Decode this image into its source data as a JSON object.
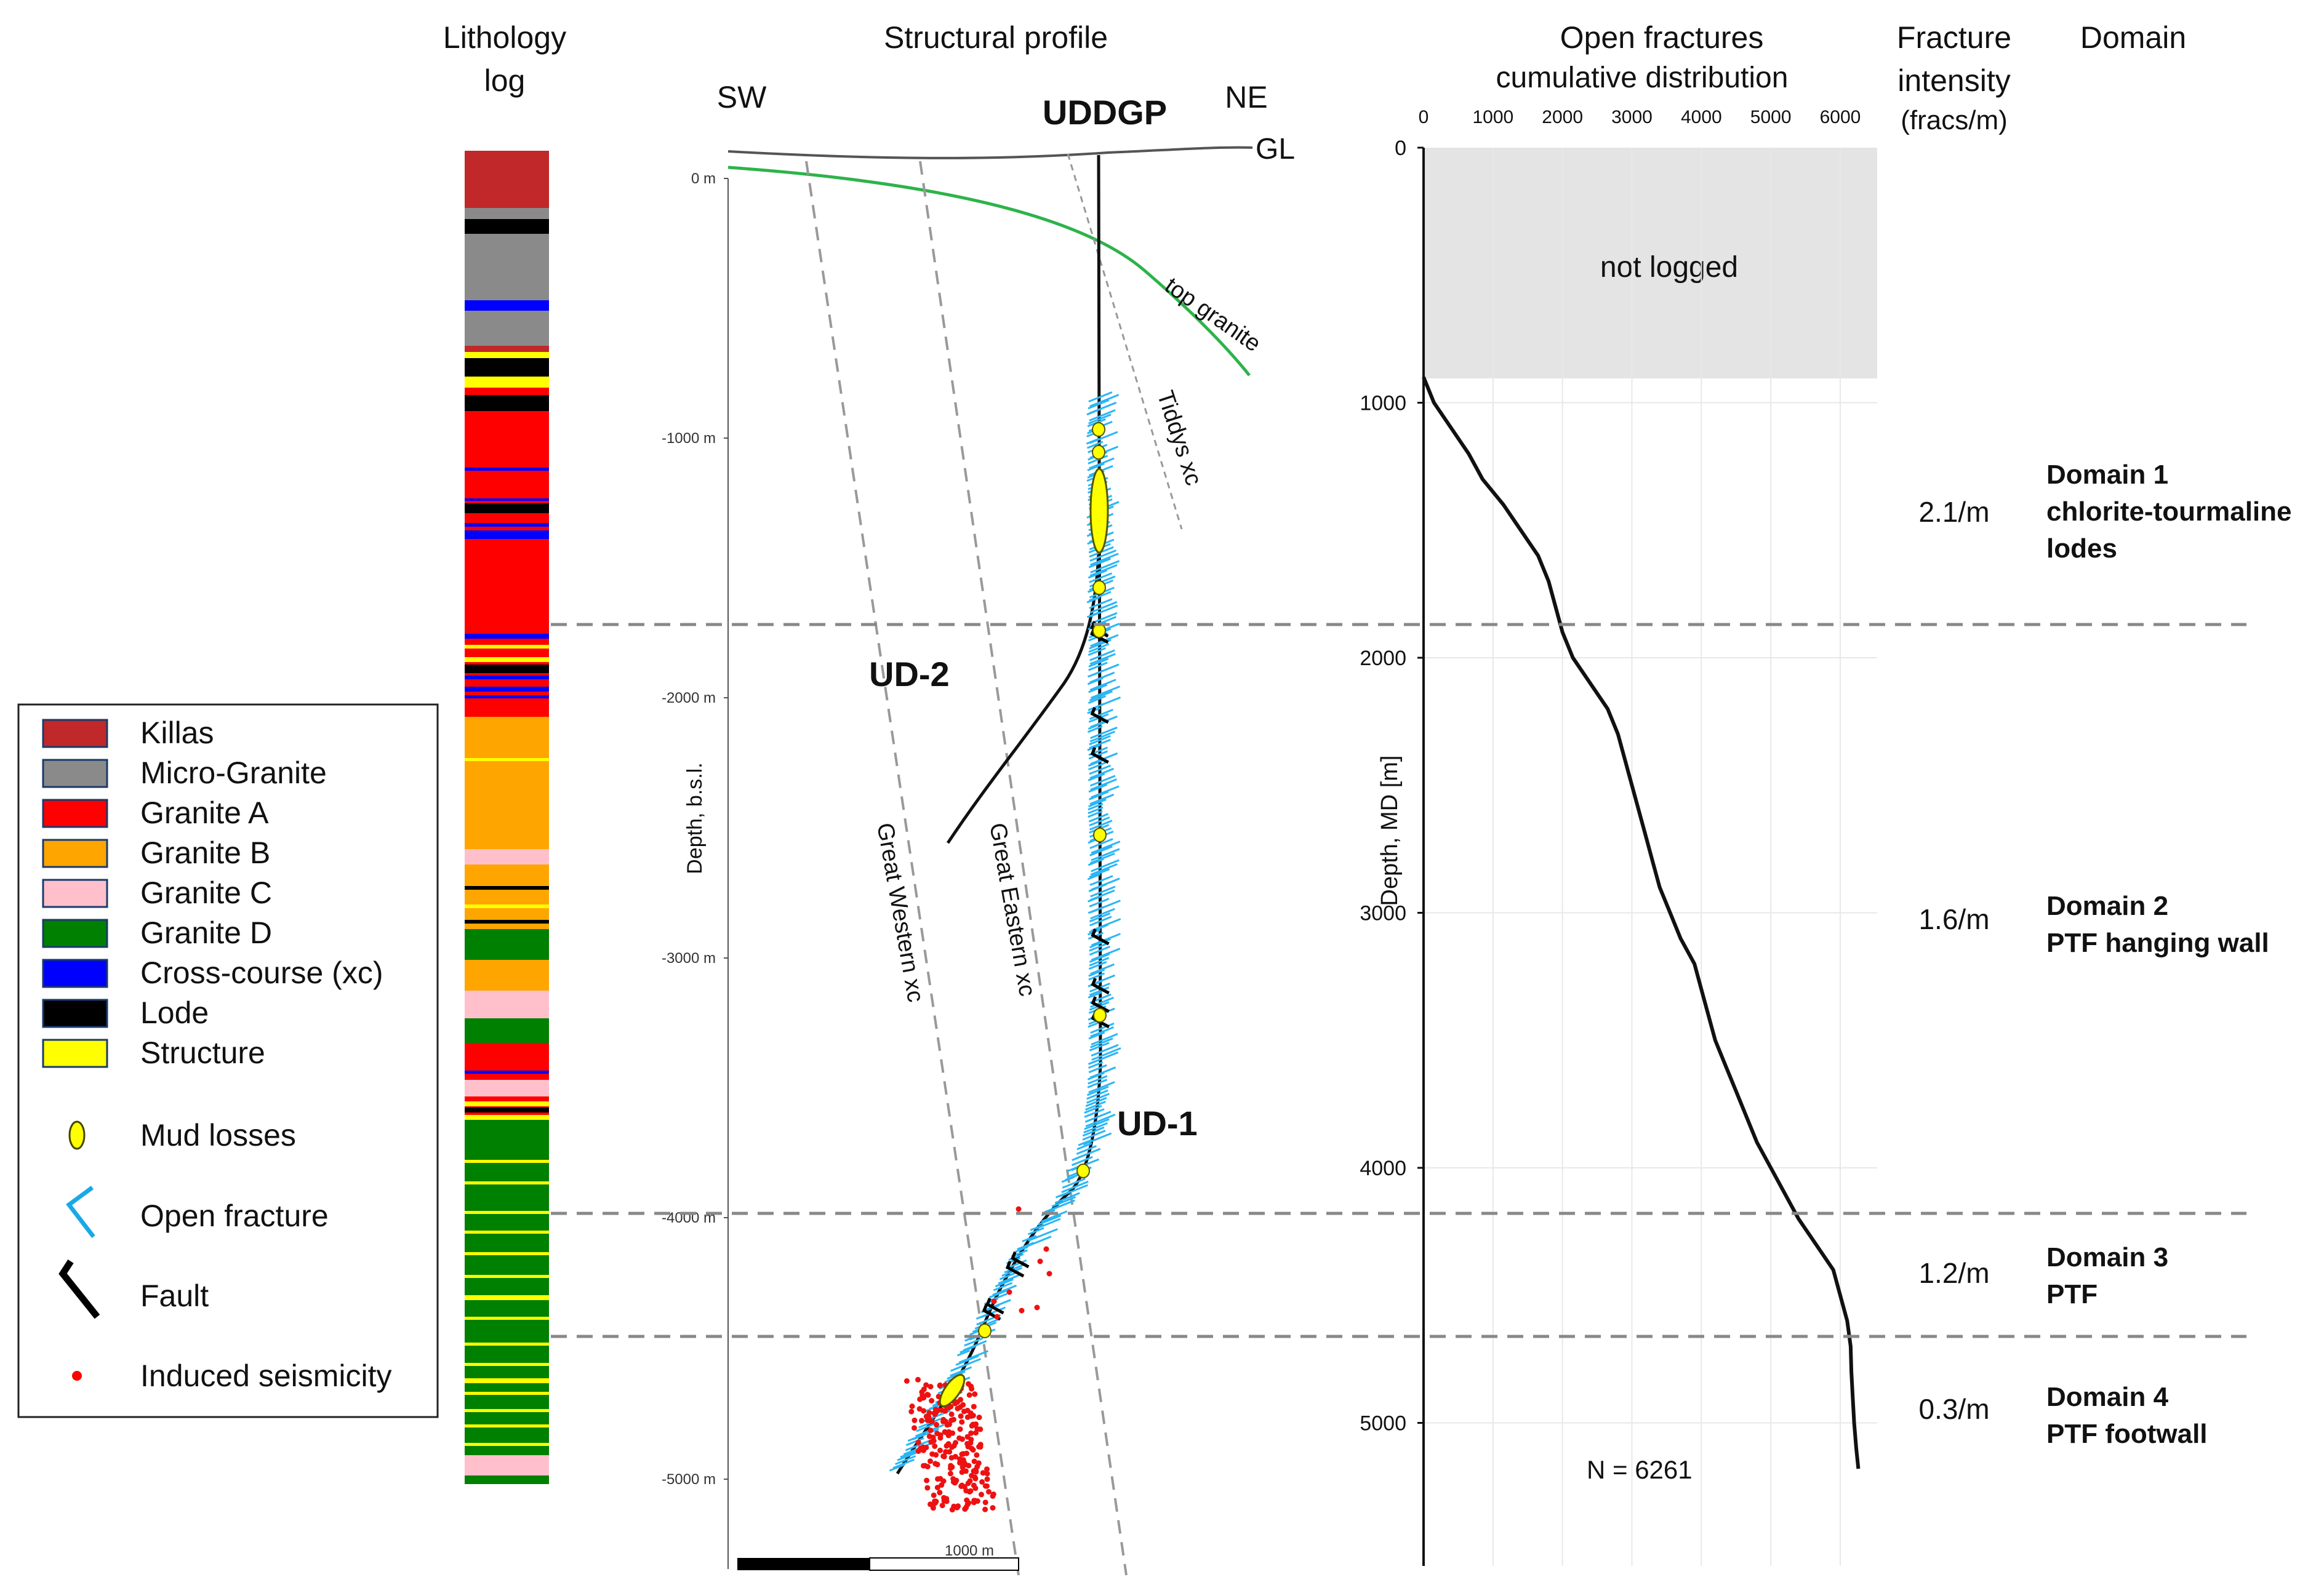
{
  "headers": {
    "lithology": [
      "Lithology",
      "log"
    ],
    "profile": "Structural profile",
    "fractures": [
      "Open fractures",
      "cumulative  distribution"
    ],
    "intensity": [
      "Fracture",
      "intensity",
      "(fracs/m)"
    ],
    "domain": "Domain"
  },
  "profile": {
    "sw": "SW",
    "ne": "NE",
    "well": "UDDGP",
    "gl": "GL",
    "ud1": "UD-1",
    "ud2": "UD-2",
    "top_granite": "top granite",
    "tiddys": "Tiddys xc",
    "great_western": "Great Western xc",
    "great_eastern": "Great Eastern xc",
    "depth_axis_label": "Depth, b.s.l.",
    "depth_ticks": [
      "0 m",
      "-1000 m",
      "-2000 m",
      "-3000 m",
      "-4000 m",
      "-5000 m"
    ],
    "scale_label": "1000 m"
  },
  "fracture_plot": {
    "x_ticks": [
      "0",
      "1000",
      "2000",
      "3000",
      "4000",
      "5000",
      "6000"
    ],
    "y_ticks": [
      "0",
      "1000",
      "2000",
      "3000",
      "4000",
      "5000"
    ],
    "y_label": "Depth, MD [m]",
    "not_logged": "not logged",
    "n_label": "N = 6261"
  },
  "domains": [
    {
      "intensity": "2.1/m",
      "name": "Domain 1",
      "desc": [
        "chlorite-tourmaline",
        "lodes"
      ]
    },
    {
      "intensity": "1.6/m",
      "name": "Domain 2",
      "desc": [
        "PTF hanging wall"
      ]
    },
    {
      "intensity": "1.2/m",
      "name": "Domain 3",
      "desc": [
        "PTF"
      ]
    },
    {
      "intensity": "0.3/m",
      "name": "Domain 4",
      "desc": [
        "PTF footwall"
      ]
    }
  ],
  "legend": {
    "rocks": [
      {
        "label": "Killas",
        "color": "#c0282a"
      },
      {
        "label": "Micro-Granite",
        "color": "#8a8a8a"
      },
      {
        "label": "Granite A",
        "color": "#ff0000"
      },
      {
        "label": "Granite B",
        "color": "#ffa500"
      },
      {
        "label": "Granite C",
        "color": "#ffc0cb"
      },
      {
        "label": "Granite D",
        "color": "#008000"
      },
      {
        "label": "Cross-course (xc)",
        "color": "#0000ff"
      },
      {
        "label": "Lode",
        "color": "#000000"
      },
      {
        "label": "Structure",
        "color": "#ffff00"
      }
    ],
    "symbols": [
      {
        "label": "Mud losses",
        "icon": "mud-loss-icon"
      },
      {
        "label": "Open fracture",
        "icon": "open-fracture-icon"
      },
      {
        "label": "Fault",
        "icon": "fault-icon"
      },
      {
        "label": "Induced seismicity",
        "icon": "induced-seismicity-icon"
      }
    ]
  },
  "chart_data": {
    "type": "line",
    "title": "Open fractures cumulative distribution",
    "xlabel": "cumulative distribution",
    "ylabel": "Depth, MD [m]",
    "xlim": [
      0,
      6500
    ],
    "ylim": [
      5600,
      0
    ],
    "not_logged_interval_m": [
      0,
      900
    ],
    "total_fractures": 6261,
    "series": [
      {
        "name": "Open fractures",
        "depth_m": [
          900,
          1000,
          1100,
          1200,
          1300,
          1400,
          1500,
          1600,
          1700,
          1800,
          1900,
          2000,
          2100,
          2200,
          2300,
          2400,
          2500,
          2600,
          2700,
          2800,
          2900,
          3000,
          3100,
          3200,
          3300,
          3400,
          3500,
          3600,
          3700,
          3800,
          3900,
          4000,
          4100,
          4200,
          4300,
          4400,
          4500,
          4600,
          4700,
          4800,
          4900,
          5000,
          5100,
          5180
        ],
        "cumulative": [
          0,
          150,
          400,
          650,
          850,
          1150,
          1400,
          1650,
          1800,
          1900,
          2000,
          2150,
          2400,
          2650,
          2800,
          2900,
          3000,
          3100,
          3200,
          3300,
          3400,
          3550,
          3700,
          3900,
          4000,
          4100,
          4200,
          4350,
          4500,
          4650,
          4800,
          5000,
          5200,
          5400,
          5650,
          5900,
          6000,
          6100,
          6150,
          6160,
          6180,
          6200,
          6230,
          6261
        ]
      }
    ]
  }
}
